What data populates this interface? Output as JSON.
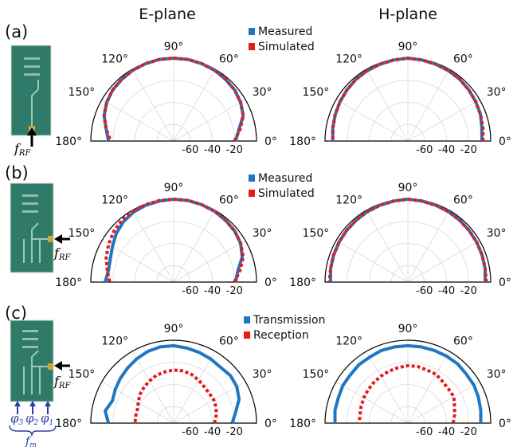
{
  "column_titles": [
    "E-plane",
    "H-plane"
  ],
  "colors": {
    "measured": "#1f77c4",
    "simulated": "#e41a1c",
    "board": "#2f7a68",
    "brace": "#2c3da8"
  },
  "annotations": {
    "frf_base": "f",
    "frf_sub": "RF",
    "fm_base": "f",
    "fm_sub": "m",
    "phase_labels": [
      {
        "base": "φ",
        "sub": "3"
      },
      {
        "base": "φ",
        "sub": "2"
      },
      {
        "base": "φ",
        "sub": "1"
      }
    ]
  },
  "chart_data": [
    {
      "type": "polar-line",
      "panel": "(a)",
      "title": "E-plane",
      "angle_ticks": [
        "180°",
        "150°",
        "120°",
        "90°",
        "60°",
        "30°",
        "0°"
      ],
      "radial_ticks": [
        "-60",
        "-40",
        "-20"
      ],
      "radial_range_db": [
        -75,
        0
      ],
      "legend": [
        "Measured",
        "Simulated"
      ],
      "legend_placement": "top-right",
      "series": [
        {
          "name": "Measured",
          "style": "solid",
          "angles_deg": [
            0,
            10,
            20,
            30,
            40,
            50,
            60,
            70,
            80,
            90,
            100,
            110,
            120,
            130,
            140,
            150,
            160,
            170,
            180
          ],
          "values_db": [
            -19,
            -15,
            -8,
            -5,
            -3,
            -2,
            -1,
            -0.5,
            0,
            0,
            0,
            -0.5,
            -1,
            -2,
            -3,
            -5,
            -8,
            -13,
            -16
          ]
        },
        {
          "name": "Simulated",
          "style": "dotted",
          "angles_deg": [
            0,
            10,
            20,
            30,
            40,
            50,
            60,
            70,
            80,
            90,
            100,
            110,
            120,
            130,
            140,
            150,
            160,
            170,
            180
          ],
          "values_db": [
            -20,
            -14,
            -8,
            -5,
            -3,
            -2,
            -1,
            -0.5,
            0,
            0,
            0,
            -0.5,
            -1,
            -2,
            -3,
            -5,
            -8,
            -13,
            -18
          ]
        }
      ]
    },
    {
      "type": "polar-line",
      "panel": "(a)",
      "title": "H-plane",
      "angle_ticks": [
        "180°",
        "150°",
        "120°",
        "90°",
        "60°",
        "30°",
        "0°"
      ],
      "radial_ticks": [
        "-60",
        "-40",
        "-20"
      ],
      "radial_range_db": [
        -75,
        0
      ],
      "series": [
        {
          "name": "Measured",
          "style": "solid",
          "angles_deg": [
            0,
            10,
            20,
            30,
            40,
            50,
            60,
            70,
            80,
            90,
            100,
            110,
            120,
            130,
            140,
            150,
            160,
            170,
            180
          ],
          "values_db": [
            -8,
            -7,
            -5,
            -4,
            -3,
            -2,
            -1.5,
            -1,
            -0.5,
            0,
            -0.5,
            -1,
            -1.5,
            -2,
            -3,
            -4,
            -5,
            -6,
            -7
          ]
        },
        {
          "name": "Simulated",
          "style": "dotted",
          "angles_deg": [
            0,
            10,
            20,
            30,
            40,
            50,
            60,
            70,
            80,
            90,
            100,
            110,
            120,
            130,
            140,
            150,
            160,
            170,
            180
          ],
          "values_db": [
            -7,
            -6,
            -5,
            -4,
            -3,
            -2,
            -1.5,
            -1,
            -0.5,
            0,
            -0.5,
            -1,
            -1.5,
            -2,
            -3,
            -4,
            -5,
            -6,
            -7
          ]
        }
      ]
    },
    {
      "type": "polar-line",
      "panel": "(b)",
      "title": "E-plane",
      "angle_ticks": [
        "180°",
        "150°",
        "120°",
        "90°",
        "60°",
        "30°",
        "0°"
      ],
      "radial_ticks": [
        "-60",
        "-40",
        "-20"
      ],
      "radial_range_db": [
        -75,
        0
      ],
      "legend": [
        "Measured",
        "Simulated"
      ],
      "legend_placement": "top-right",
      "series": [
        {
          "name": "Measured",
          "style": "solid",
          "angles_deg": [
            0,
            10,
            20,
            30,
            40,
            50,
            60,
            70,
            80,
            90,
            100,
            110,
            120,
            130,
            140,
            150,
            160,
            170,
            180
          ],
          "values_db": [
            -19,
            -16,
            -9,
            -5,
            -3,
            -2,
            -1,
            -0.5,
            0,
            0,
            -0.5,
            -1,
            -2,
            -4,
            -7,
            -11,
            -14,
            -15,
            -13
          ]
        },
        {
          "name": "Simulated",
          "style": "dotted",
          "angles_deg": [
            0,
            10,
            20,
            30,
            40,
            50,
            60,
            70,
            80,
            90,
            100,
            110,
            120,
            130,
            140,
            150,
            160,
            170,
            180
          ],
          "values_db": [
            -20,
            -14,
            -8,
            -5,
            -3,
            -2,
            -1,
            -0.5,
            0,
            0,
            0,
            -0.5,
            -1,
            -2,
            -4,
            -7,
            -10,
            -14,
            -17
          ]
        }
      ]
    },
    {
      "type": "polar-line",
      "panel": "(b)",
      "title": "H-plane",
      "angle_ticks": [
        "180°",
        "150°",
        "120°",
        "90°",
        "60°",
        "30°",
        "0°"
      ],
      "radial_ticks": [
        "-60",
        "-40",
        "-20"
      ],
      "radial_range_db": [
        -75,
        0
      ],
      "series": [
        {
          "name": "Measured",
          "style": "solid",
          "angles_deg": [
            0,
            10,
            20,
            30,
            40,
            50,
            60,
            70,
            80,
            90,
            100,
            110,
            120,
            130,
            140,
            150,
            160,
            170,
            180
          ],
          "values_db": [
            -5,
            -4,
            -3.5,
            -3,
            -2.5,
            -2,
            -1.5,
            -1,
            -0.5,
            0,
            -0.5,
            -1,
            -1.5,
            -2,
            -2.5,
            -3,
            -3.5,
            -4,
            -5
          ]
        },
        {
          "name": "Simulated",
          "style": "dotted",
          "angles_deg": [
            0,
            10,
            20,
            30,
            40,
            50,
            60,
            70,
            80,
            90,
            100,
            110,
            120,
            130,
            140,
            150,
            160,
            170,
            180
          ],
          "values_db": [
            -4,
            -4,
            -3.5,
            -3,
            -2.5,
            -2,
            -1.5,
            -1,
            -0.5,
            0,
            -0.5,
            -1,
            -1.5,
            -2,
            -2.5,
            -3,
            -3.5,
            -4,
            -4
          ]
        }
      ]
    },
    {
      "type": "polar-line",
      "panel": "(c)",
      "title": "E-plane",
      "angle_ticks": [
        "180°",
        "150°",
        "120°",
        "90°",
        "60°",
        "30°",
        "0°"
      ],
      "radial_ticks": [
        "-60",
        "-40",
        "-20"
      ],
      "radial_range_db": [
        -75,
        0
      ],
      "legend": [
        "Transmission",
        "Reception"
      ],
      "legend_placement": "top-right",
      "series": [
        {
          "name": "Transmission",
          "style": "solid",
          "angles_deg": [
            0,
            10,
            20,
            30,
            40,
            50,
            60,
            70,
            80,
            90,
            100,
            110,
            120,
            130,
            140,
            150,
            160,
            170,
            180
          ],
          "values_db": [
            -22,
            -18,
            -12,
            -9,
            -8,
            -9,
            -8,
            -7,
            -6,
            -5,
            -5,
            -6,
            -8,
            -10,
            -12,
            -14,
            -16,
            -12,
            -16
          ]
        },
        {
          "name": "Reception",
          "style": "dotted",
          "angles_deg": [
            0,
            10,
            20,
            30,
            40,
            50,
            60,
            70,
            80,
            90,
            100,
            110,
            120,
            130,
            140,
            150,
            160,
            170,
            180
          ],
          "values_db": [
            -38,
            -36,
            -34,
            -33,
            -33,
            -32,
            -30,
            -28,
            -27,
            -27,
            -28,
            -29,
            -31,
            -33,
            -35,
            -38,
            -40,
            -40,
            -40
          ]
        }
      ]
    },
    {
      "type": "polar-line",
      "panel": "(c)",
      "title": "H-plane",
      "angle_ticks": [
        "180°",
        "150°",
        "120°",
        "90°",
        "60°",
        "30°",
        "0°"
      ],
      "radial_ticks": [
        "-60",
        "-40",
        "-20"
      ],
      "radial_range_db": [
        -75,
        0
      ],
      "series": [
        {
          "name": "Transmission",
          "style": "solid",
          "angles_deg": [
            0,
            10,
            20,
            30,
            40,
            50,
            60,
            70,
            80,
            90,
            100,
            110,
            120,
            130,
            140,
            150,
            160,
            170,
            180
          ],
          "values_db": [
            -9,
            -8,
            -7,
            -6,
            -6,
            -5,
            -5,
            -5,
            -5,
            -5,
            -5,
            -5,
            -6,
            -6,
            -7,
            -7,
            -8,
            -8,
            -9
          ]
        },
        {
          "name": "Reception",
          "style": "dotted",
          "angles_deg": [
            0,
            10,
            20,
            30,
            40,
            50,
            60,
            70,
            80,
            90,
            100,
            110,
            120,
            130,
            140,
            150,
            160,
            170,
            180
          ],
          "values_db": [
            -34,
            -32,
            -30,
            -27,
            -27,
            -26,
            -24,
            -24,
            -23,
            -23,
            -24,
            -25,
            -26,
            -27,
            -28,
            -29,
            -30,
            -31,
            -31
          ]
        }
      ]
    }
  ]
}
